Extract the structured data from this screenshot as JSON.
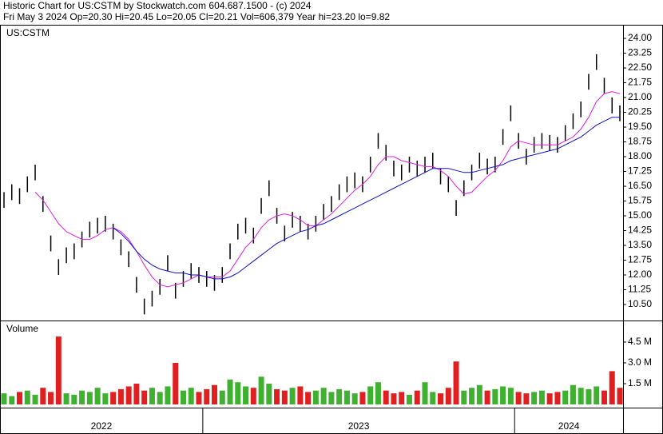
{
  "chart_data": {
    "type": "ohlc",
    "title": "Historic Chart for US:CSTM by Stockwatch.com 604.687.1500 - (c) 2024",
    "subtitle": "Fri May  3 2024  Op=20.30  Hi=20.45  Lo=20.05  Cl=20.21  Vol=606,379  Year hi=23.20  lo=9.82",
    "symbol": "US:CSTM",
    "volume_label": "Volume",
    "categories": [
      "2022",
      "2022",
      "2022",
      "2022",
      "2022",
      "2022",
      "2022",
      "2022",
      "2022",
      "2022",
      "2022",
      "2022",
      "2022",
      "2022",
      "2022",
      "2022",
      "2022",
      "2022",
      "2022",
      "2022",
      "2022",
      "2022",
      "2022",
      "2022",
      "2022",
      "2022",
      "2023",
      "2023",
      "2023",
      "2023",
      "2023",
      "2023",
      "2023",
      "2023",
      "2023",
      "2023",
      "2023",
      "2023",
      "2023",
      "2023",
      "2023",
      "2023",
      "2023",
      "2023",
      "2023",
      "2023",
      "2023",
      "2023",
      "2023",
      "2023",
      "2023",
      "2023",
      "2023",
      "2023",
      "2023",
      "2023",
      "2023",
      "2023",
      "2023",
      "2023",
      "2023",
      "2023",
      "2023",
      "2023",
      "2023",
      "2023",
      "2024",
      "2024",
      "2024",
      "2024",
      "2024",
      "2024",
      "2024",
      "2024",
      "2024",
      "2024",
      "2024",
      "2024",
      "2024",
      "2024"
    ],
    "low": [
      15.4,
      15.8,
      15.6,
      16.2,
      16.8,
      15.2,
      13.2,
      12.0,
      12.6,
      12.8,
      13.4,
      13.9,
      14.1,
      14.2,
      13.8,
      13.0,
      12.4,
      11.1,
      10.0,
      10.4,
      11.0,
      12.2,
      10.8,
      11.4,
      11.8,
      11.6,
      11.4,
      11.2,
      11.6,
      12.8,
      13.8,
      14.1,
      13.6,
      15.1,
      16.0,
      14.6,
      13.7,
      14.4,
      14.2,
      13.8,
      14.2,
      14.8,
      15.2,
      15.8,
      16.2,
      16.4,
      16.2,
      17.2,
      18.4,
      17.8,
      17.0,
      16.8,
      17.2,
      17.0,
      17.2,
      17.4,
      16.6,
      16.2,
      15.0,
      16.0,
      16.8,
      17.4,
      17.1,
      17.2,
      18.6,
      19.8,
      18.4,
      17.6,
      18.2,
      18.4,
      18.3,
      18.2,
      18.8,
      19.4,
      20.0,
      21.4,
      22.4,
      21.2,
      20.2,
      19.8
    ],
    "high": [
      16.2,
      16.6,
      16.4,
      17.0,
      17.6,
      16.0,
      14.0,
      12.8,
      13.4,
      13.6,
      14.2,
      14.7,
      14.9,
      15.0,
      14.6,
      13.8,
      13.2,
      11.9,
      10.8,
      11.2,
      11.8,
      13.0,
      11.6,
      12.2,
      12.6,
      12.4,
      12.2,
      12.0,
      12.4,
      13.6,
      14.6,
      14.9,
      14.4,
      15.9,
      16.8,
      15.4,
      14.5,
      15.2,
      15.0,
      14.6,
      15.0,
      15.6,
      16.0,
      16.6,
      17.0,
      17.2,
      17.0,
      18.0,
      19.2,
      18.6,
      17.8,
      17.6,
      18.0,
      17.8,
      18.0,
      18.2,
      17.4,
      17.0,
      15.8,
      16.8,
      17.6,
      18.2,
      17.9,
      18.0,
      19.4,
      20.6,
      19.2,
      18.4,
      19.0,
      19.2,
      19.1,
      19.0,
      19.6,
      20.2,
      20.8,
      22.2,
      23.2,
      22.0,
      21.0,
      20.6
    ],
    "price_color": "#000000",
    "moving_averages": [
      {
        "color": "#e020e0",
        "values": [
          null,
          null,
          null,
          null,
          16.2,
          15.8,
          15.2,
          14.6,
          14.2,
          14.0,
          13.8,
          13.8,
          14.0,
          14.3,
          14.4,
          14.2,
          13.8,
          13.2,
          12.5,
          11.9,
          11.5,
          11.4,
          11.5,
          11.6,
          11.8,
          12.0,
          11.9,
          11.9,
          11.9,
          12.2,
          12.8,
          13.4,
          13.8,
          14.4,
          14.8,
          15.0,
          15.1,
          15.0,
          14.8,
          14.5,
          14.5,
          14.8,
          15.1,
          15.5,
          15.9,
          16.3,
          16.6,
          17.0,
          17.6,
          18.0,
          18.0,
          17.8,
          17.7,
          17.6,
          17.5,
          17.5,
          17.3,
          17.0,
          16.5,
          16.1,
          16.2,
          16.6,
          17.0,
          17.3,
          17.8,
          18.5,
          18.8,
          18.7,
          18.6,
          18.6,
          18.6,
          18.6,
          18.8,
          19.0,
          19.4,
          20.0,
          20.8,
          21.2,
          21.3,
          21.2
        ]
      },
      {
        "color": "#1010c0",
        "values": [
          null,
          null,
          null,
          null,
          null,
          null,
          null,
          null,
          null,
          null,
          null,
          null,
          null,
          null,
          14.4,
          14.1,
          13.7,
          13.2,
          12.8,
          12.5,
          12.3,
          12.2,
          12.1,
          12.1,
          12.0,
          12.0,
          11.9,
          11.8,
          11.8,
          11.9,
          12.1,
          12.4,
          12.7,
          13.0,
          13.3,
          13.6,
          13.8,
          14.0,
          14.2,
          14.3,
          14.5,
          14.6,
          14.8,
          15.0,
          15.2,
          15.4,
          15.6,
          15.8,
          16.0,
          16.2,
          16.4,
          16.6,
          16.8,
          17.0,
          17.2,
          17.4,
          17.4,
          17.4,
          17.3,
          17.2,
          17.2,
          17.3,
          17.4,
          17.5,
          17.6,
          17.8,
          17.9,
          18.0,
          18.1,
          18.2,
          18.3,
          18.4,
          18.6,
          18.8,
          19.0,
          19.3,
          19.6,
          19.8,
          20.0,
          20.0
        ]
      }
    ],
    "volume": [
      0.8,
      0.6,
      0.9,
      1.0,
      0.7,
      1.2,
      0.9,
      4.9,
      0.8,
      0.7,
      1.0,
      0.9,
      1.2,
      0.8,
      0.9,
      1.1,
      1.3,
      1.5,
      1.0,
      1.2,
      0.9,
      1.3,
      3.0,
      1.0,
      1.2,
      0.9,
      1.1,
      1.4,
      1.0,
      1.8,
      1.6,
      1.3,
      1.2,
      2.0,
      1.5,
      1.1,
      1.0,
      1.2,
      1.3,
      0.9,
      1.0,
      1.2,
      0.9,
      1.1,
      1.0,
      0.8,
      0.9,
      1.3,
      1.6,
      1.0,
      0.8,
      0.9,
      0.7,
      1.0,
      1.6,
      0.9,
      0.8,
      1.2,
      3.1,
      1.0,
      1.2,
      1.4,
      1.0,
      1.1,
      1.3,
      1.2,
      0.9,
      0.8,
      0.9,
      1.0,
      0.8,
      0.9,
      1.0,
      1.4,
      1.2,
      1.1,
      1.3,
      1.0,
      2.4,
      1.2
    ],
    "up_color": "#40b030",
    "down_color": "#e02020",
    "ylim": [
      9.73,
      24.61
    ],
    "yticks": [
      {
        "value": 24,
        "label": "24.00"
      },
      {
        "value": 23.25,
        "label": "23.25"
      },
      {
        "value": 22.5,
        "label": "22.50"
      },
      {
        "value": 21.75,
        "label": "21.75"
      },
      {
        "value": 21,
        "label": "21.00"
      },
      {
        "value": 20.25,
        "label": "20.25"
      },
      {
        "value": 19.5,
        "label": "19.50"
      },
      {
        "value": 18.75,
        "label": "18.75"
      },
      {
        "value": 18,
        "label": "18.00"
      },
      {
        "value": 17.25,
        "label": "17.25"
      },
      {
        "value": 16.5,
        "label": "16.50"
      },
      {
        "value": 15.75,
        "label": "15.75"
      },
      {
        "value": 15,
        "label": "15.00"
      },
      {
        "value": 14.25,
        "label": "14.25"
      },
      {
        "value": 13.5,
        "label": "13.50"
      },
      {
        "value": 12.75,
        "label": "12.75"
      },
      {
        "value": 12,
        "label": "12.00"
      },
      {
        "value": 11.25,
        "label": "11.25"
      },
      {
        "value": 10.5,
        "label": "10.50"
      }
    ],
    "y2lim": [
      0,
      5.94
    ],
    "y2ticks": [
      {
        "value": 4.5,
        "label": "4.5 M"
      },
      {
        "value": 3,
        "label": "3.0 M"
      },
      {
        "value": 1.5,
        "label": "1.5 M"
      }
    ]
  }
}
